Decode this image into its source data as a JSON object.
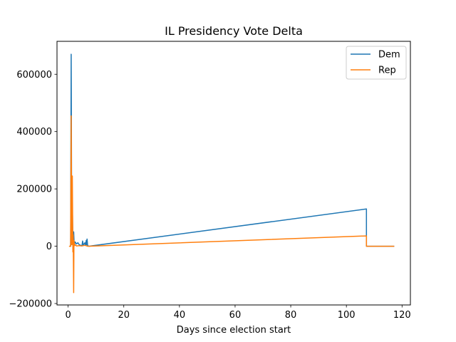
{
  "chart_data": {
    "type": "line",
    "title": "IL Presidency Vote Delta",
    "xlabel": "Days since election start",
    "ylabel": "",
    "xlim": [
      -4,
      123
    ],
    "ylim": [
      -205000,
      715000
    ],
    "xticks": [
      0,
      20,
      40,
      60,
      80,
      100,
      120
    ],
    "yticks": [
      -200000,
      0,
      200000,
      400000,
      600000
    ],
    "xtick_labels": [
      "0",
      "20",
      "40",
      "60",
      "80",
      "100",
      "120"
    ],
    "ytick_labels": [
      "−200000",
      "0",
      "200000",
      "400000",
      "600000"
    ],
    "grid": false,
    "legend_position": "upper right",
    "series": [
      {
        "name": "Dem",
        "color": "#1f77b4",
        "x": [
          0.9,
          1.1,
          1.3,
          1.5,
          1.7,
          2.0,
          2.2,
          2.5,
          3.0,
          3.5,
          4.0,
          4.5,
          5.0,
          5.2,
          5.5,
          6.0,
          6.3,
          6.5,
          6.6,
          6.8,
          7.0,
          7.5,
          107.2,
          107.2,
          117.0
        ],
        "y": [
          0,
          670000,
          10000,
          160000,
          5000,
          50000,
          3000,
          15000,
          8000,
          12000,
          5000,
          3000,
          2000,
          18000,
          3000,
          12000,
          3000,
          20000,
          5000,
          25000,
          2000,
          0,
          130000,
          0,
          0
        ]
      },
      {
        "name": "Rep",
        "color": "#ff7f0e",
        "x": [
          0.5,
          0.9,
          1.1,
          1.3,
          1.5,
          1.7,
          1.8,
          2.0,
          2.1,
          2.3,
          2.6,
          3.0,
          4.0,
          5.0,
          6.0,
          7.0,
          107.2,
          107.2,
          117.0
        ],
        "y": [
          0,
          0,
          455000,
          5000,
          245000,
          -20000,
          40000,
          -162000,
          20000,
          2000,
          5000,
          1000,
          2000,
          1000,
          3000,
          0,
          36000,
          0,
          0
        ]
      }
    ]
  }
}
